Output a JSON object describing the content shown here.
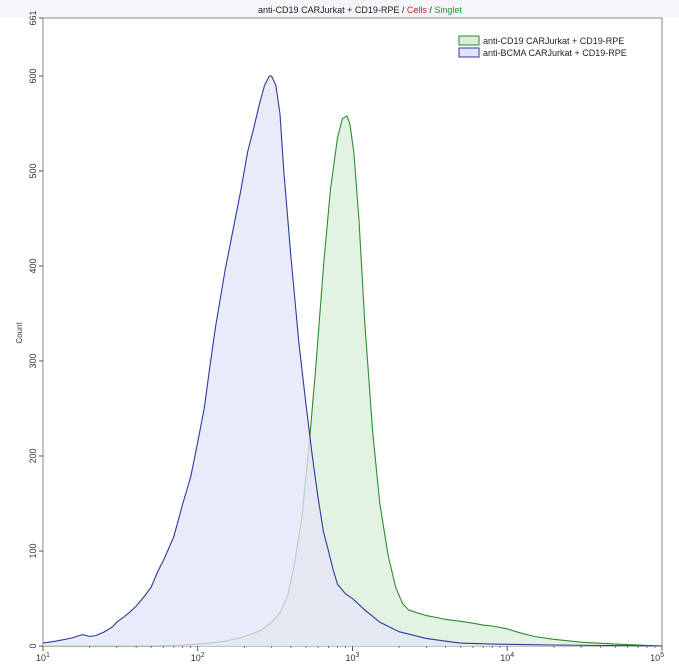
{
  "colors": {
    "frame": "#8a8a8a",
    "grid_band": "#eef0f4",
    "title_text": "#222222",
    "title_cells": "#cc2222",
    "title_singlet": "#1f9a1f"
  },
  "chart_data": {
    "type": "area",
    "title_parts": [
      "anti-CD19 CARJurkat + CD19-RPE",
      " / ",
      "Cells",
      " / ",
      "Singlet"
    ],
    "xlabel": "",
    "ylabel": "Count",
    "xscale": "log",
    "xlim": [
      10,
      100000
    ],
    "ylim": [
      0,
      661
    ],
    "xticks": [
      {
        "value": 10,
        "base": "10",
        "exp": "1"
      },
      {
        "value": 100,
        "base": "10",
        "exp": "2"
      },
      {
        "value": 1000,
        "base": "10",
        "exp": "3"
      },
      {
        "value": 10000,
        "base": "10",
        "exp": "4"
      },
      {
        "value": 100000,
        "base": "10",
        "exp": "5"
      }
    ],
    "yticks": [
      0,
      100,
      200,
      300,
      400,
      500,
      600,
      661
    ],
    "legend_position": "top-right",
    "series": [
      {
        "name": "anti-CD19 CARJurkat + CD19-RPE",
        "stroke": "#2e8b2e",
        "fill": "#d9efd9",
        "x": [
          10,
          50,
          80,
          100,
          120,
          150,
          180,
          220,
          260,
          300,
          340,
          380,
          420,
          470,
          520,
          580,
          650,
          720,
          800,
          860,
          920,
          960,
          1020,
          1100,
          1200,
          1350,
          1500,
          1700,
          1900,
          2100,
          2300,
          2600,
          3000,
          3500,
          4000,
          5000,
          6000,
          7000,
          8000,
          10000,
          12000,
          15000,
          20000,
          30000,
          50000,
          70000,
          100000
        ],
        "y": [
          0,
          0,
          1,
          2,
          3,
          5,
          8,
          12,
          17,
          25,
          35,
          52,
          85,
          135,
          205,
          295,
          400,
          480,
          535,
          555,
          558,
          550,
          520,
          450,
          340,
          225,
          150,
          95,
          62,
          45,
          38,
          35,
          32,
          30,
          28,
          26,
          24,
          22,
          21,
          18,
          14,
          10,
          7,
          4,
          2,
          1,
          0
        ]
      },
      {
        "name": "anti-BCMA CARJurkat + CD19-RPE",
        "stroke": "#2c3a9c",
        "fill": "#e3e4f7",
        "x": [
          10,
          12,
          15,
          18,
          20,
          22,
          25,
          28,
          30,
          33,
          36,
          40,
          45,
          50,
          55,
          60,
          70,
          80,
          90,
          100,
          110,
          120,
          130,
          150,
          170,
          190,
          210,
          230,
          250,
          270,
          290,
          300,
          320,
          340,
          360,
          400,
          450,
          500,
          550,
          600,
          650,
          700,
          750,
          800,
          900,
          1000,
          1200,
          1500,
          2000,
          3000,
          4000,
          5000,
          8000,
          20000,
          100000
        ],
        "y": [
          3,
          5,
          8,
          12,
          10,
          11,
          15,
          20,
          25,
          30,
          35,
          42,
          52,
          62,
          78,
          90,
          115,
          150,
          178,
          215,
          250,
          295,
          335,
          395,
          440,
          480,
          520,
          545,
          570,
          590,
          600,
          600,
          590,
          560,
          500,
          410,
          320,
          255,
          200,
          155,
          120,
          100,
          80,
          65,
          55,
          50,
          38,
          25,
          15,
          8,
          5,
          3,
          2,
          1,
          0
        ]
      }
    ]
  }
}
